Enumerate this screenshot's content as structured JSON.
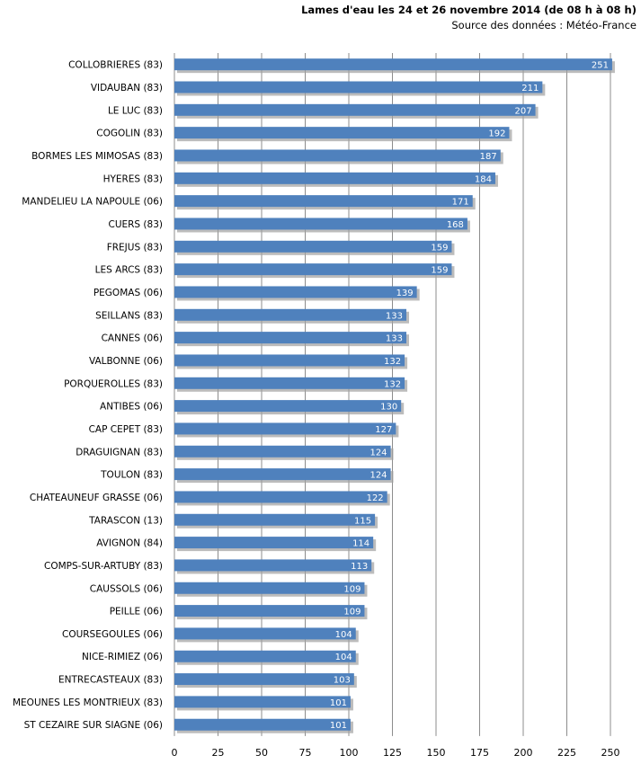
{
  "title": "Lames d'eau les 24 et 26 novembre 2014 (de 08 h à 08 h)",
  "subtitle": "Source des données : Météo-France",
  "colors": {
    "bar": "#4f81bd",
    "bar_shadow": "#a0a0a0",
    "grid": "#8c8c8c",
    "bar_label": "#ffffff"
  },
  "chart_data": {
    "type": "bar",
    "orientation": "horizontal",
    "categories": [
      "COLLOBRIERES (83)",
      "VIDAUBAN (83)",
      "LE LUC (83)",
      "COGOLIN (83)",
      "BORMES LES MIMOSAS (83)",
      "HYERES (83)",
      "MANDELIEU LA NAPOULE (06)",
      "CUERS (83)",
      "FREJUS (83)",
      "LES ARCS (83)",
      "PEGOMAS (06)",
      "SEILLANS (83)",
      "CANNES (06)",
      "VALBONNE (06)",
      "PORQUEROLLES (83)",
      "ANTIBES (06)",
      "CAP CEPET (83)",
      "DRAGUIGNAN (83)",
      "TOULON (83)",
      "CHATEAUNEUF GRASSE (06)",
      "TARASCON (13)",
      "AVIGNON (84)",
      "COMPS-SUR-ARTUBY (83)",
      "CAUSSOLS (06)",
      "PEILLE (06)",
      "COURSEGOULES (06)",
      "NICE-RIMIEZ (06)",
      "ENTRECASTEAUX (83)",
      "MEOUNES LES MONTRIEUX (83)",
      "ST CEZAIRE SUR SIAGNE (06)"
    ],
    "values": [
      251,
      211,
      207,
      192,
      187,
      184,
      171,
      168,
      159,
      159,
      139,
      133,
      133,
      132,
      132,
      130,
      127,
      124,
      124,
      122,
      115,
      114,
      113,
      109,
      109,
      104,
      104,
      103,
      101,
      101
    ],
    "xlim": [
      0,
      250
    ],
    "xticks": [
      "0",
      "25",
      "50",
      "75",
      "100",
      "125",
      "150",
      "175",
      "200",
      "225",
      "250"
    ],
    "grid": true,
    "data_labels": true
  }
}
